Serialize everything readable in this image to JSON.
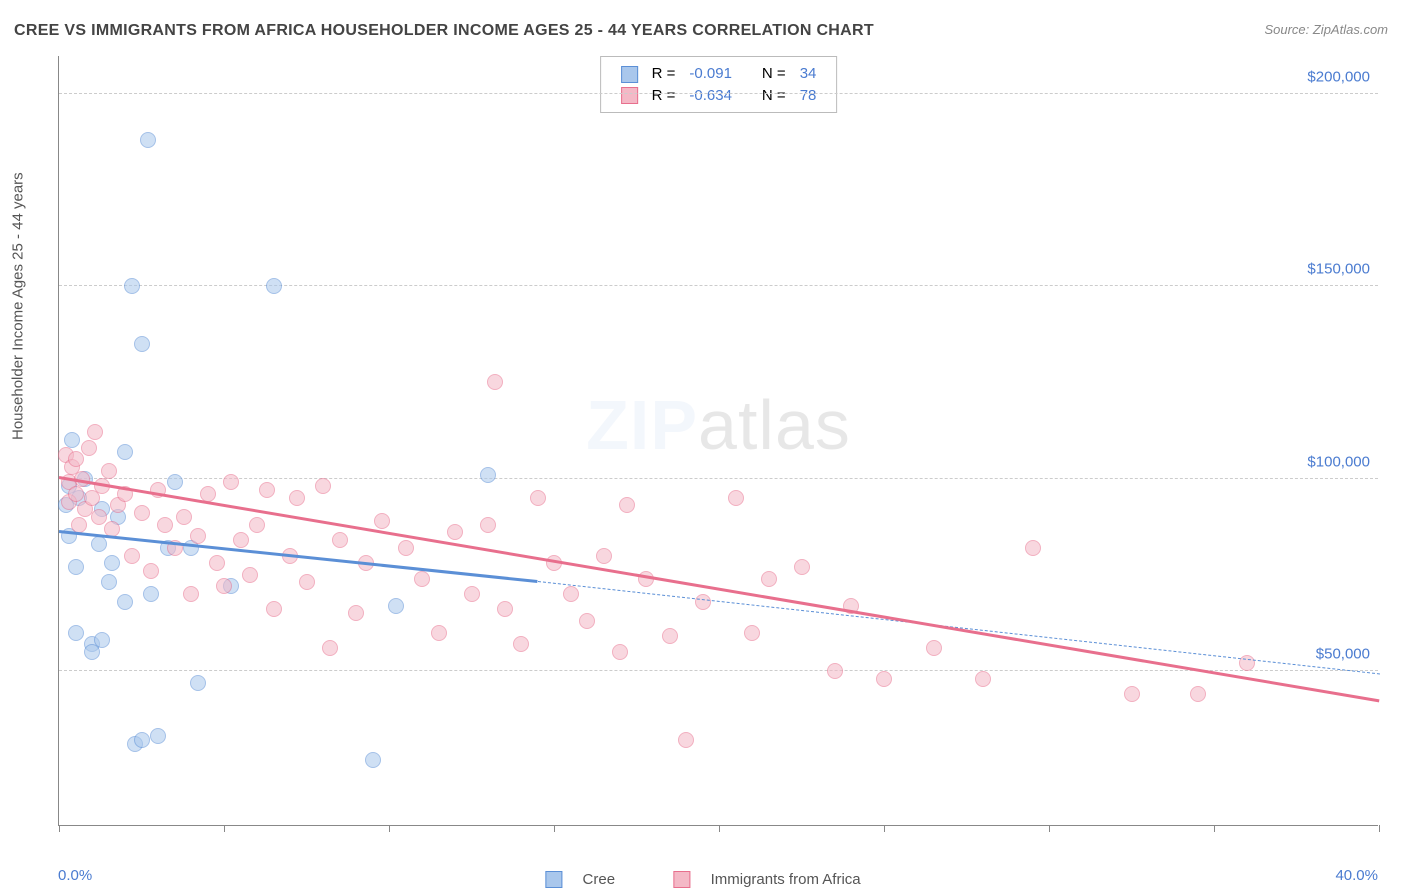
{
  "title": "CREE VS IMMIGRANTS FROM AFRICA HOUSEHOLDER INCOME AGES 25 - 44 YEARS CORRELATION CHART",
  "source": "Source: ZipAtlas.com",
  "y_axis_title": "Householder Income Ages 25 - 44 years",
  "watermark_a": "ZIP",
  "watermark_b": "atlas",
  "chart": {
    "type": "scatter-with-trend",
    "xlim": [
      0,
      40
    ],
    "ylim": [
      10000,
      210000
    ],
    "x_tick_positions": [
      0,
      5,
      10,
      15,
      20,
      25,
      30,
      35,
      40
    ],
    "x_label_min": "0.0%",
    "x_label_max": "40.0%",
    "y_ticks": [
      50000,
      100000,
      150000,
      200000
    ],
    "y_tick_labels": [
      "$50,000",
      "$100,000",
      "$150,000",
      "$200,000"
    ],
    "background_color": "#ffffff",
    "grid_color": "#cccccc",
    "axis_color": "#888888",
    "tick_label_color": "#4a7bd0",
    "marker_radius": 8,
    "marker_opacity": 0.55,
    "trend_width": 2.5
  },
  "series": [
    {
      "name": "Cree",
      "fill": "#a9c7ec",
      "stroke": "#5b8fd6",
      "R": "-0.091",
      "N": "34",
      "trend": {
        "x1": 0,
        "y1": 86000,
        "x2": 14.5,
        "y2": 73000,
        "extrap_x2": 40,
        "extrap_y2": 49000
      },
      "points": [
        [
          0.2,
          93000
        ],
        [
          0.3,
          98000
        ],
        [
          0.3,
          85000
        ],
        [
          0.4,
          110000
        ],
        [
          0.5,
          77000
        ],
        [
          0.5,
          60000
        ],
        [
          0.6,
          95000
        ],
        [
          0.8,
          100000
        ],
        [
          1.0,
          57000
        ],
        [
          1.0,
          55000
        ],
        [
          1.2,
          83000
        ],
        [
          1.3,
          92000
        ],
        [
          1.3,
          58000
        ],
        [
          1.5,
          73000
        ],
        [
          1.6,
          78000
        ],
        [
          1.8,
          90000
        ],
        [
          2.0,
          107000
        ],
        [
          2.0,
          68000
        ],
        [
          2.2,
          150000
        ],
        [
          2.3,
          31000
        ],
        [
          2.5,
          135000
        ],
        [
          2.5,
          32000
        ],
        [
          2.7,
          188000
        ],
        [
          2.8,
          70000
        ],
        [
          3.0,
          33000
        ],
        [
          3.3,
          82000
        ],
        [
          3.5,
          99000
        ],
        [
          4.0,
          82000
        ],
        [
          4.2,
          47000
        ],
        [
          5.2,
          72000
        ],
        [
          6.5,
          150000
        ],
        [
          9.5,
          27000
        ],
        [
          10.2,
          67000
        ],
        [
          13.0,
          101000
        ]
      ]
    },
    {
      "name": "Immigrants from Africa",
      "fill": "#f4b8c6",
      "stroke": "#e86f8d",
      "R": "-0.634",
      "N": "78",
      "trend": {
        "x1": 0,
        "y1": 100000,
        "x2": 40,
        "y2": 42000
      },
      "points": [
        [
          0.2,
          106000
        ],
        [
          0.3,
          99000
        ],
        [
          0.3,
          94000
        ],
        [
          0.4,
          103000
        ],
        [
          0.5,
          96000
        ],
        [
          0.5,
          105000
        ],
        [
          0.6,
          88000
        ],
        [
          0.7,
          100000
        ],
        [
          0.8,
          92000
        ],
        [
          0.9,
          108000
        ],
        [
          1.0,
          95000
        ],
        [
          1.1,
          112000
        ],
        [
          1.2,
          90000
        ],
        [
          1.3,
          98000
        ],
        [
          1.5,
          102000
        ],
        [
          1.6,
          87000
        ],
        [
          1.8,
          93000
        ],
        [
          2.0,
          96000
        ],
        [
          2.2,
          80000
        ],
        [
          2.5,
          91000
        ],
        [
          2.8,
          76000
        ],
        [
          3.0,
          97000
        ],
        [
          3.2,
          88000
        ],
        [
          3.5,
          82000
        ],
        [
          3.8,
          90000
        ],
        [
          4.0,
          70000
        ],
        [
          4.2,
          85000
        ],
        [
          4.5,
          96000
        ],
        [
          4.8,
          78000
        ],
        [
          5.0,
          72000
        ],
        [
          5.2,
          99000
        ],
        [
          5.5,
          84000
        ],
        [
          5.8,
          75000
        ],
        [
          6.0,
          88000
        ],
        [
          6.3,
          97000
        ],
        [
          6.5,
          66000
        ],
        [
          7.0,
          80000
        ],
        [
          7.2,
          95000
        ],
        [
          7.5,
          73000
        ],
        [
          8.0,
          98000
        ],
        [
          8.2,
          56000
        ],
        [
          8.5,
          84000
        ],
        [
          9.0,
          65000
        ],
        [
          9.3,
          78000
        ],
        [
          9.8,
          89000
        ],
        [
          10.5,
          82000
        ],
        [
          11.0,
          74000
        ],
        [
          11.5,
          60000
        ],
        [
          12.0,
          86000
        ],
        [
          12.5,
          70000
        ],
        [
          13.0,
          88000
        ],
        [
          13.2,
          125000
        ],
        [
          13.5,
          66000
        ],
        [
          14.0,
          57000
        ],
        [
          14.5,
          95000
        ],
        [
          15.0,
          78000
        ],
        [
          15.5,
          70000
        ],
        [
          16.0,
          63000
        ],
        [
          16.5,
          80000
        ],
        [
          17.0,
          55000
        ],
        [
          17.2,
          93000
        ],
        [
          17.8,
          74000
        ],
        [
          18.5,
          59000
        ],
        [
          19.0,
          32000
        ],
        [
          19.5,
          68000
        ],
        [
          20.5,
          95000
        ],
        [
          21.0,
          60000
        ],
        [
          21.5,
          74000
        ],
        [
          22.5,
          77000
        ],
        [
          23.5,
          50000
        ],
        [
          24.0,
          67000
        ],
        [
          25.0,
          48000
        ],
        [
          26.5,
          56000
        ],
        [
          28.0,
          48000
        ],
        [
          29.5,
          82000
        ],
        [
          32.5,
          44000
        ],
        [
          34.5,
          44000
        ],
        [
          36.0,
          52000
        ]
      ]
    }
  ],
  "statbox": {
    "R_label": "R =",
    "N_label": "N ="
  },
  "legend": {
    "s0": "Cree",
    "s1": "Immigrants from Africa"
  }
}
